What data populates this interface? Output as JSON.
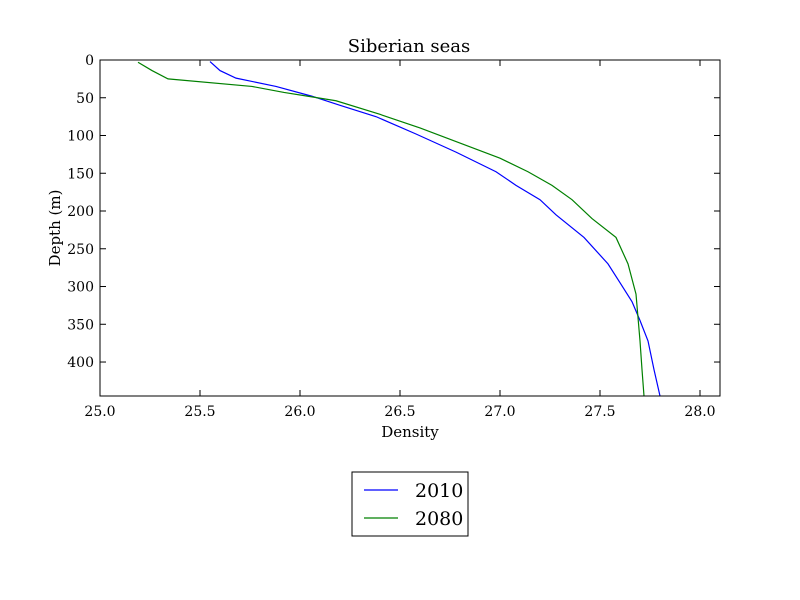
{
  "chart_data": {
    "type": "line",
    "title": "Siberian seas",
    "xlabel": "Density",
    "ylabel": "Depth (m)",
    "xlim": [
      25.0,
      28.1
    ],
    "ylim": [
      445,
      0
    ],
    "y_inverted": true,
    "x_ticks": [
      "25.0",
      "25.5",
      "26.0",
      "26.5",
      "27.0",
      "27.5",
      "28.0"
    ],
    "y_ticks": [
      "0",
      "50",
      "100",
      "150",
      "200",
      "250",
      "300",
      "350",
      "400"
    ],
    "grid": false,
    "legend_position": "below plot, centered",
    "series": [
      {
        "name": "2010",
        "color": "#0000ff",
        "x": [
          25.55,
          25.6,
          25.68,
          25.88,
          26.06,
          26.2,
          26.38,
          26.58,
          26.78,
          26.98,
          27.08,
          27.2,
          27.28,
          27.42,
          27.54,
          27.6,
          27.66,
          27.7,
          27.74,
          27.77,
          27.8
        ],
        "y": [
          2,
          14,
          24,
          35,
          48,
          60,
          75,
          98,
          122,
          148,
          166,
          185,
          205,
          235,
          270,
          295,
          320,
          345,
          372,
          410,
          445
        ]
      },
      {
        "name": "2080",
        "color": "#008000",
        "x": [
          25.19,
          25.26,
          25.34,
          25.76,
          25.92,
          26.04,
          26.18,
          26.4,
          26.6,
          26.8,
          27.0,
          27.14,
          27.26,
          27.36,
          27.46,
          27.58,
          27.64,
          27.68,
          27.7,
          27.71,
          27.72
        ],
        "y": [
          3,
          14,
          25,
          35,
          43,
          48,
          54,
          72,
          90,
          110,
          130,
          148,
          166,
          185,
          210,
          235,
          270,
          310,
          372,
          410,
          445
        ]
      }
    ]
  }
}
